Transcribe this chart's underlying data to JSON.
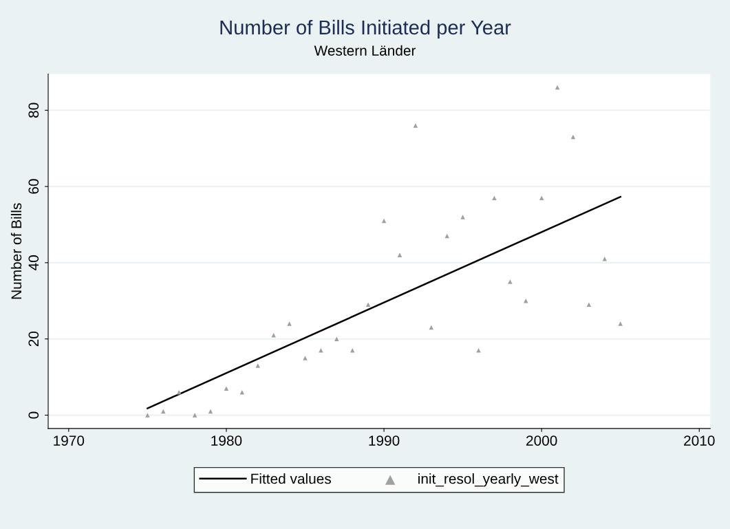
{
  "chart_data": {
    "type": "scatter",
    "title": "Number of Bills Initiated per Year",
    "subtitle": "Western Länder",
    "ylabel": "Number of Bills",
    "x": [
      1975,
      1976,
      1977,
      1978,
      1979,
      1980,
      1981,
      1982,
      1983,
      1984,
      1985,
      1986,
      1987,
      1988,
      1989,
      1990,
      1991,
      1992,
      1993,
      1994,
      1995,
      1996,
      1997,
      1998,
      1999,
      2000,
      2001,
      2002,
      2003,
      2004,
      2005
    ],
    "series": [
      {
        "name": "Fitted values",
        "type": "line",
        "color": "#000000",
        "x": [
          1975,
          2005
        ],
        "values": [
          1.8,
          57.3
        ],
        "marker": "none",
        "line_style": "solid"
      },
      {
        "name": "init_resol_yearly_west",
        "color": "#a0a0a0",
        "marker": "triangle",
        "values": [
          0,
          1,
          6,
          0,
          1,
          7,
          6,
          13,
          21,
          24,
          15,
          17,
          20,
          17,
          29,
          51,
          42,
          76,
          23,
          47,
          52,
          17,
          57,
          35,
          30,
          57,
          86,
          73,
          29,
          41,
          24
        ]
      }
    ],
    "xlim": [
      1968.7,
      2010.7
    ],
    "xticks": [
      1970,
      1980,
      1990,
      2000,
      2010
    ],
    "ylim": [
      -3.5,
      89.5
    ],
    "yticks": [
      0,
      20,
      40,
      60,
      80
    ],
    "grid": "y",
    "legend": "bottom"
  }
}
